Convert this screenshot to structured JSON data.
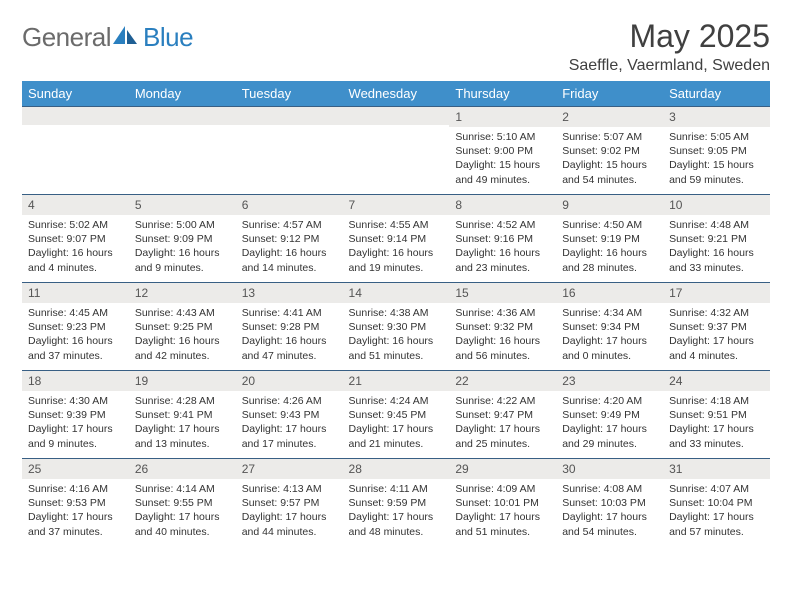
{
  "brand": {
    "name_gray": "General",
    "name_blue": "Blue"
  },
  "title": "May 2025",
  "location": "Saeffle, Vaermland, Sweden",
  "colors": {
    "header_bg": "#3f8fca",
    "header_fg": "#ffffff",
    "row_border": "#385f84",
    "daynum_bg": "#ecebe9",
    "logo_gray": "#6b6b6b",
    "logo_blue": "#2a7fbf"
  },
  "day_headers": [
    "Sunday",
    "Monday",
    "Tuesday",
    "Wednesday",
    "Thursday",
    "Friday",
    "Saturday"
  ],
  "weeks": [
    [
      {
        "n": "",
        "sr": "",
        "ss": "",
        "dl": ""
      },
      {
        "n": "",
        "sr": "",
        "ss": "",
        "dl": ""
      },
      {
        "n": "",
        "sr": "",
        "ss": "",
        "dl": ""
      },
      {
        "n": "",
        "sr": "",
        "ss": "",
        "dl": ""
      },
      {
        "n": "1",
        "sr": "5:10 AM",
        "ss": "9:00 PM",
        "dl": "15 hours and 49 minutes."
      },
      {
        "n": "2",
        "sr": "5:07 AM",
        "ss": "9:02 PM",
        "dl": "15 hours and 54 minutes."
      },
      {
        "n": "3",
        "sr": "5:05 AM",
        "ss": "9:05 PM",
        "dl": "15 hours and 59 minutes."
      }
    ],
    [
      {
        "n": "4",
        "sr": "5:02 AM",
        "ss": "9:07 PM",
        "dl": "16 hours and 4 minutes."
      },
      {
        "n": "5",
        "sr": "5:00 AM",
        "ss": "9:09 PM",
        "dl": "16 hours and 9 minutes."
      },
      {
        "n": "6",
        "sr": "4:57 AM",
        "ss": "9:12 PM",
        "dl": "16 hours and 14 minutes."
      },
      {
        "n": "7",
        "sr": "4:55 AM",
        "ss": "9:14 PM",
        "dl": "16 hours and 19 minutes."
      },
      {
        "n": "8",
        "sr": "4:52 AM",
        "ss": "9:16 PM",
        "dl": "16 hours and 23 minutes."
      },
      {
        "n": "9",
        "sr": "4:50 AM",
        "ss": "9:19 PM",
        "dl": "16 hours and 28 minutes."
      },
      {
        "n": "10",
        "sr": "4:48 AM",
        "ss": "9:21 PM",
        "dl": "16 hours and 33 minutes."
      }
    ],
    [
      {
        "n": "11",
        "sr": "4:45 AM",
        "ss": "9:23 PM",
        "dl": "16 hours and 37 minutes."
      },
      {
        "n": "12",
        "sr": "4:43 AM",
        "ss": "9:25 PM",
        "dl": "16 hours and 42 minutes."
      },
      {
        "n": "13",
        "sr": "4:41 AM",
        "ss": "9:28 PM",
        "dl": "16 hours and 47 minutes."
      },
      {
        "n": "14",
        "sr": "4:38 AM",
        "ss": "9:30 PM",
        "dl": "16 hours and 51 minutes."
      },
      {
        "n": "15",
        "sr": "4:36 AM",
        "ss": "9:32 PM",
        "dl": "16 hours and 56 minutes."
      },
      {
        "n": "16",
        "sr": "4:34 AM",
        "ss": "9:34 PM",
        "dl": "17 hours and 0 minutes."
      },
      {
        "n": "17",
        "sr": "4:32 AM",
        "ss": "9:37 PM",
        "dl": "17 hours and 4 minutes."
      }
    ],
    [
      {
        "n": "18",
        "sr": "4:30 AM",
        "ss": "9:39 PM",
        "dl": "17 hours and 9 minutes."
      },
      {
        "n": "19",
        "sr": "4:28 AM",
        "ss": "9:41 PM",
        "dl": "17 hours and 13 minutes."
      },
      {
        "n": "20",
        "sr": "4:26 AM",
        "ss": "9:43 PM",
        "dl": "17 hours and 17 minutes."
      },
      {
        "n": "21",
        "sr": "4:24 AM",
        "ss": "9:45 PM",
        "dl": "17 hours and 21 minutes."
      },
      {
        "n": "22",
        "sr": "4:22 AM",
        "ss": "9:47 PM",
        "dl": "17 hours and 25 minutes."
      },
      {
        "n": "23",
        "sr": "4:20 AM",
        "ss": "9:49 PM",
        "dl": "17 hours and 29 minutes."
      },
      {
        "n": "24",
        "sr": "4:18 AM",
        "ss": "9:51 PM",
        "dl": "17 hours and 33 minutes."
      }
    ],
    [
      {
        "n": "25",
        "sr": "4:16 AM",
        "ss": "9:53 PM",
        "dl": "17 hours and 37 minutes."
      },
      {
        "n": "26",
        "sr": "4:14 AM",
        "ss": "9:55 PM",
        "dl": "17 hours and 40 minutes."
      },
      {
        "n": "27",
        "sr": "4:13 AM",
        "ss": "9:57 PM",
        "dl": "17 hours and 44 minutes."
      },
      {
        "n": "28",
        "sr": "4:11 AM",
        "ss": "9:59 PM",
        "dl": "17 hours and 48 minutes."
      },
      {
        "n": "29",
        "sr": "4:09 AM",
        "ss": "10:01 PM",
        "dl": "17 hours and 51 minutes."
      },
      {
        "n": "30",
        "sr": "4:08 AM",
        "ss": "10:03 PM",
        "dl": "17 hours and 54 minutes."
      },
      {
        "n": "31",
        "sr": "4:07 AM",
        "ss": "10:04 PM",
        "dl": "17 hours and 57 minutes."
      }
    ]
  ],
  "labels": {
    "sunrise": "Sunrise:",
    "sunset": "Sunset:",
    "daylight": "Daylight:"
  }
}
